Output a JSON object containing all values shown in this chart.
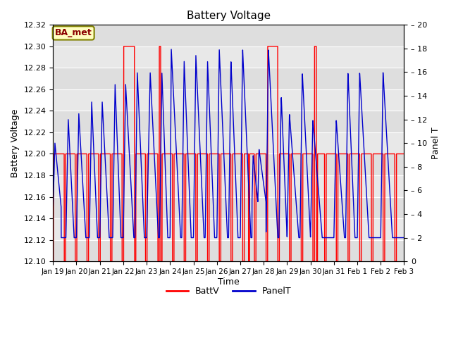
{
  "title": "Battery Voltage",
  "xlabel": "Time",
  "ylabel_left": "Battery Voltage",
  "ylabel_right": "Panel T",
  "annotation": "BA_met",
  "xlim": [
    0,
    15
  ],
  "ylim_left": [
    12.1,
    12.32
  ],
  "ylim_right": [
    0,
    20
  ],
  "xtick_labels": [
    "Jan 19",
    "Jan 20",
    "Jan 21",
    "Jan 22",
    "Jan 23",
    "Jan 24",
    "Jan 25",
    "Jan 26",
    "Jan 27",
    "Jan 28",
    "Jan 29",
    "Jan 30",
    "Jan 31",
    "Feb 1",
    "Feb 2",
    "Feb 3"
  ],
  "ytick_left": [
    12.1,
    12.12,
    12.14,
    12.16,
    12.18,
    12.2,
    12.22,
    12.24,
    12.26,
    12.28,
    12.3,
    12.32
  ],
  "ytick_right": [
    0,
    2,
    4,
    6,
    8,
    10,
    12,
    14,
    16,
    18,
    20
  ],
  "batt_color": "#FF0000",
  "panel_color": "#0000CC",
  "bg_color": "#E8E8E8",
  "legend_entries": [
    "BattV",
    "PanelT"
  ],
  "batt_data": {
    "t": [
      0.0,
      0.05,
      0.05,
      0.55,
      0.55,
      0.6,
      0.6,
      1.05,
      1.05,
      1.1,
      1.1,
      1.55,
      1.55,
      1.6,
      1.6,
      2.05,
      2.05,
      2.55,
      2.55,
      2.6,
      2.6,
      3.05,
      3.05,
      3.1,
      3.1,
      3.55,
      3.55,
      3.6,
      3.6,
      4.1,
      4.1,
      4.15,
      4.15,
      4.6,
      4.6,
      4.65,
      4.65,
      5.15,
      5.15,
      5.2,
      5.2,
      5.65,
      5.65,
      5.7,
      5.7,
      6.2,
      6.2,
      6.25,
      6.25,
      6.7,
      6.7,
      6.75,
      6.75,
      7.25,
      7.25,
      7.3,
      7.3,
      7.75,
      7.75,
      7.8,
      7.8,
      8.3,
      8.3,
      8.35,
      8.35,
      8.8,
      8.8,
      8.85,
      8.85,
      9.2,
      9.2,
      9.25,
      9.25,
      9.65,
      9.65,
      9.7,
      9.7,
      10.15,
      10.15,
      10.2,
      10.2,
      10.65,
      10.65,
      10.7,
      10.7,
      11.15,
      11.15,
      11.2,
      11.2,
      11.65,
      11.65,
      11.7,
      11.7,
      12.15,
      12.15,
      12.2,
      12.2,
      12.65,
      12.65,
      12.7,
      12.7,
      13.15,
      13.15,
      13.2,
      13.2,
      13.65,
      13.65,
      13.7,
      13.7,
      14.15,
      14.15,
      14.2,
      14.2,
      14.65,
      14.65,
      15.0
    ],
    "v": [
      12.2,
      12.2,
      12.1,
      12.1,
      12.2,
      12.2,
      12.1,
      12.1,
      12.2,
      12.2,
      12.1,
      12.1,
      12.2,
      12.2,
      12.1,
      12.1,
      12.2,
      12.2,
      12.1,
      12.1,
      12.2,
      12.2,
      12.3,
      12.3,
      12.2,
      12.2,
      12.1,
      12.1,
      12.2,
      12.2,
      12.1,
      12.1,
      12.2,
      12.2,
      12.1,
      12.1,
      12.2,
      12.2,
      12.3,
      12.3,
      12.2,
      12.2,
      12.1,
      12.1,
      12.2,
      12.2,
      12.1,
      12.1,
      12.2,
      12.2,
      12.1,
      12.1,
      12.2,
      12.2,
      12.1,
      12.1,
      12.2,
      12.2,
      12.1,
      12.1,
      12.2,
      12.2,
      12.1,
      12.1,
      12.2,
      12.2,
      12.1,
      12.1,
      12.2,
      12.2,
      12.2,
      12.2,
      12.2,
      12.2,
      12.1,
      12.1,
      12.2,
      12.2,
      12.2,
      12.2,
      12.1,
      12.1,
      12.2,
      12.2,
      12.1,
      12.1,
      12.2,
      12.2,
      12.1,
      12.1,
      12.2,
      12.2,
      12.1,
      12.1,
      12.2,
      12.2,
      12.1,
      12.1,
      12.2,
      12.2,
      12.1,
      12.1,
      12.2,
      12.2,
      12.1,
      12.1,
      12.2,
      12.2,
      12.1,
      12.1,
      12.2,
      12.2,
      12.1,
      12.1,
      12.2,
      12.2
    ]
  },
  "panel_peaks": [
    {
      "t_rise": 0.0,
      "t_peak": 0.15,
      "t_fall": 0.45,
      "t_low": 0.9,
      "peak": 12,
      "low": 4.5
    },
    {
      "t_rise": 1.0,
      "t_peak": 1.15,
      "t_fall": 1.4,
      "t_low": 1.8,
      "peak": 12.5,
      "low": 2
    },
    {
      "t_rise": 2.0,
      "t_peak": 2.15,
      "t_fall": 2.5,
      "t_low": 2.85,
      "peak": 13.5,
      "low": 2
    },
    {
      "t_rise": 3.0,
      "t_peak": 3.15,
      "t_fall": 3.5,
      "t_low": 3.9,
      "peak": 16,
      "low": 2
    },
    {
      "t_rise": 4.0,
      "t_peak": 4.2,
      "t_fall": 4.55,
      "t_low": 4.85,
      "peak": 16,
      "low": 2
    },
    {
      "t_rise": 5.0,
      "t_peak": 5.1,
      "t_fall": 5.4,
      "t_low": 5.7,
      "peak": 18,
      "low": 2
    },
    {
      "t_rise": 6.0,
      "t_peak": 6.1,
      "t_fall": 6.45,
      "t_low": 6.75,
      "peak": 17.5,
      "low": 2
    },
    {
      "t_rise": 7.0,
      "t_peak": 7.1,
      "t_fall": 7.45,
      "t_low": 7.75,
      "peak": 18,
      "low": 2
    },
    {
      "t_rise": 8.0,
      "t_peak": 8.1,
      "t_fall": 8.45,
      "t_low": 8.8,
      "peak": 18,
      "low": 2
    },
    {
      "t_rise": 9.0,
      "t_peak": 9.05,
      "t_fall": 9.3,
      "t_low": 9.65,
      "peak": 10,
      "low": 5.5
    },
    {
      "t_rise": 10.0,
      "t_peak": 10.1,
      "t_fall": 10.4,
      "t_low": 10.8,
      "peak": 13.5,
      "low": 2
    },
    {
      "t_rise": 11.0,
      "t_peak": 11.1,
      "t_fall": 11.4,
      "t_low": 11.8,
      "peak": 16,
      "low": 2
    },
    {
      "t_rise": 12.0,
      "t_peak": 12.1,
      "t_fall": 12.4,
      "t_low": 12.8,
      "peak": 12,
      "low": 2
    },
    {
      "t_rise": 13.0,
      "t_peak": 13.1,
      "t_fall": 13.4,
      "t_low": 13.8,
      "peak": 16,
      "low": 2
    },
    {
      "t_rise": 14.0,
      "t_peak": 14.1,
      "t_fall": 14.4,
      "t_low": 14.8,
      "peak": 16,
      "low": 2
    }
  ]
}
